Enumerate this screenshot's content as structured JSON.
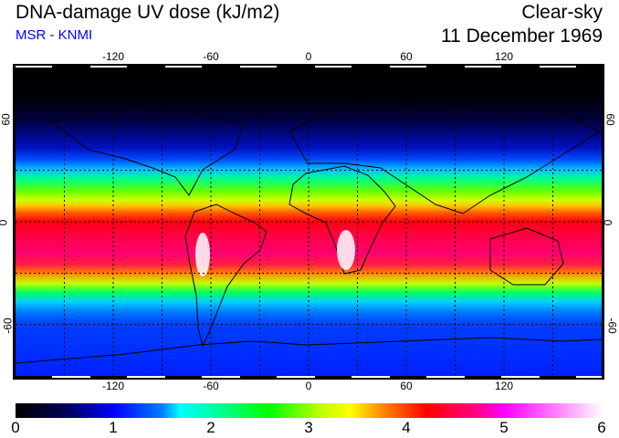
{
  "header": {
    "title": "DNA-damage UV dose (kJ/m2)",
    "source": "MSR - KNMI",
    "sky": "Clear-sky",
    "date": "11 December 1969"
  },
  "map": {
    "lon_labels": [
      "-120",
      "-60",
      "0",
      "60",
      "120"
    ],
    "lat_labels": [
      "60",
      "0",
      "-60"
    ],
    "gridlines_lon": [
      -150,
      -120,
      -90,
      -60,
      -30,
      0,
      30,
      60,
      90,
      120,
      150
    ],
    "gridlines_lat": [
      -60,
      -30,
      0,
      30,
      60
    ]
  },
  "colorbar": {
    "ticks": [
      "0",
      "1",
      "2",
      "3",
      "4",
      "5",
      "6"
    ],
    "min": 0,
    "max": 6,
    "colors": [
      "#000000",
      "#0000ff",
      "#00ffff",
      "#00ff00",
      "#ffff00",
      "#ff0000",
      "#ff00ff",
      "#ffffff"
    ]
  }
}
